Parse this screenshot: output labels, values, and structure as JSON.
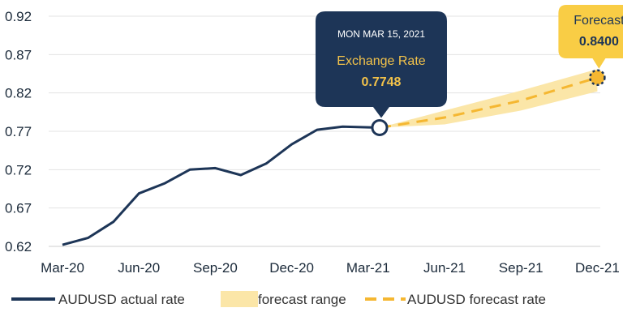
{
  "colors": {
    "actual": "#1d3557",
    "forecast_line": "#f5b731",
    "forecast_band": "#fbe6a8",
    "forecast_callout": "#f9cd45",
    "grid": "#e3e3e3"
  },
  "chart_data": {
    "type": "line",
    "ylim": [
      0.62,
      0.92
    ],
    "yticks": [
      0.62,
      0.67,
      0.72,
      0.77,
      0.82,
      0.87,
      0.92
    ],
    "yticklabels": [
      "0.62",
      "0.67",
      "0.72",
      "0.77",
      "0.82",
      "0.87",
      "0.92"
    ],
    "xticks": [
      "Mar-20",
      "Jun-20",
      "Sep-20",
      "Dec-20",
      "Mar-21",
      "Jun-21",
      "Sep-21",
      "Dec-21"
    ],
    "grid": true,
    "legend_position": "bottom",
    "series": [
      {
        "name": "AUDUSD actual rate",
        "x": [
          "Mar-20",
          "Apr-20",
          "May-20",
          "Jun-20",
          "Jul-20",
          "Aug-20",
          "Sep-20",
          "Oct-20",
          "Nov-20",
          "Dec-20",
          "Jan-21",
          "Feb-21",
          "Mar-15-21"
        ],
        "values": [
          0.622,
          0.631,
          0.652,
          0.689,
          0.702,
          0.72,
          0.722,
          0.713,
          0.728,
          0.753,
          0.772,
          0.776,
          0.7748
        ]
      },
      {
        "name": "AUDUSD forecast rate",
        "x": [
          "Mar-15-21",
          "Jun-21",
          "Sep-21",
          "Dec-21"
        ],
        "values": [
          0.7748,
          0.788,
          0.81,
          0.84
        ]
      },
      {
        "name": "forecast range",
        "x": [
          "Mar-15-21",
          "Jun-21",
          "Sep-21",
          "Dec-21"
        ],
        "lower": [
          0.7748,
          0.779,
          0.797,
          0.822
        ],
        "upper": [
          0.7748,
          0.797,
          0.823,
          0.851
        ]
      }
    ],
    "callout_actual": {
      "date": "MON MAR 15, 2021",
      "label": "Exchange Rate",
      "value": "0.7748"
    },
    "callout_forecast": {
      "label": "Forecast",
      "value": "0.8400"
    }
  }
}
